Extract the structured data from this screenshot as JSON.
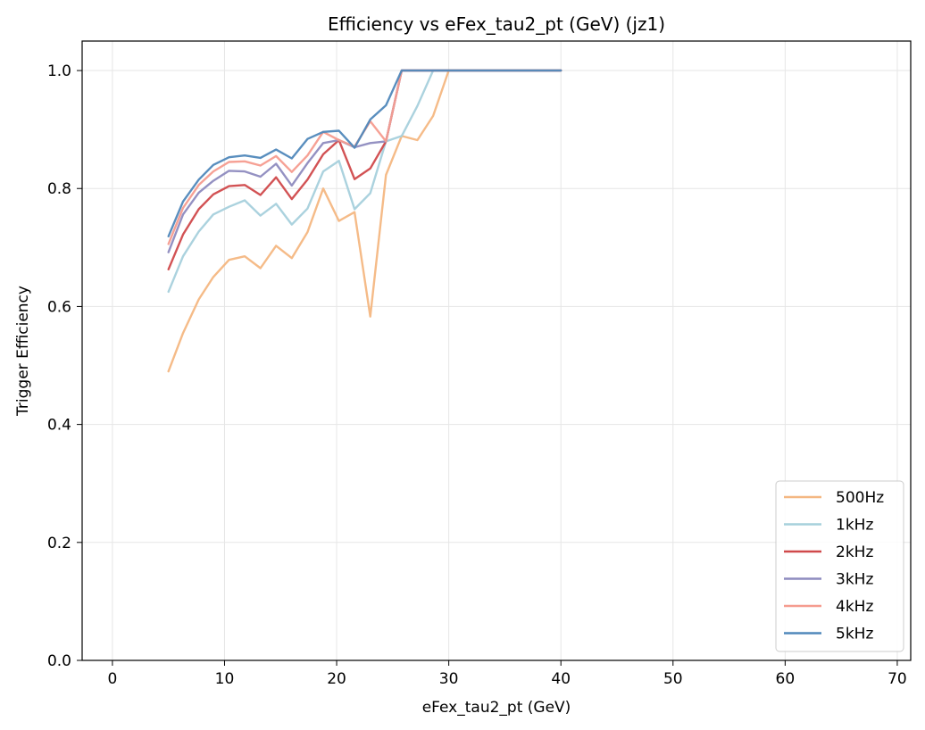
{
  "chart_data": {
    "type": "line",
    "title": "Efficiency vs eFex_tau2_pt (GeV) (jz1)",
    "xlabel": "eFex_tau2_pt (GeV)",
    "ylabel": "Trigger Efficiency",
    "xlim": [
      -2.7,
      71.2
    ],
    "ylim": [
      0,
      1.05
    ],
    "xticks": [
      "0",
      "10",
      "20",
      "30",
      "40",
      "50",
      "60",
      "70"
    ],
    "yticks": [
      "0.0",
      "0.2",
      "0.4",
      "0.6",
      "0.8",
      "1.0"
    ],
    "grid": true,
    "legend_position": "lower-right",
    "x": [
      5,
      6.3,
      7.7,
      9.0,
      10.4,
      11.8,
      13.2,
      14.6,
      16.0,
      17.4,
      18.8,
      20.2,
      21.6,
      23.0,
      24.4,
      25.8,
      27.2,
      28.6,
      30,
      32,
      34,
      36,
      38,
      40
    ],
    "series": [
      {
        "name": "500Hz",
        "color": "#f4b782",
        "values": [
          0.49,
          0.555,
          0.612,
          0.65,
          0.679,
          0.685,
          0.665,
          0.703,
          0.682,
          0.726,
          0.8,
          0.745,
          0.76,
          0.583,
          0.823,
          0.889,
          0.882,
          0.923,
          1.0,
          1.0,
          1.0,
          1.0,
          1.0,
          1.0
        ]
      },
      {
        "name": "1kHz",
        "color": "#a6d0dc",
        "values": [
          0.625,
          0.685,
          0.727,
          0.756,
          0.769,
          0.78,
          0.754,
          0.774,
          0.739,
          0.766,
          0.829,
          0.847,
          0.765,
          0.792,
          0.88,
          0.889,
          0.94,
          1.0,
          1.0,
          1.0,
          1.0,
          1.0,
          1.0,
          1.0
        ]
      },
      {
        "name": "2kHz",
        "color": "#d0494b",
        "values": [
          0.663,
          0.722,
          0.765,
          0.79,
          0.804,
          0.806,
          0.789,
          0.819,
          0.782,
          0.815,
          0.858,
          0.882,
          0.816,
          0.834,
          0.88,
          1.0,
          1.0,
          1.0,
          1.0,
          1.0,
          1.0,
          1.0,
          1.0,
          1.0
        ]
      },
      {
        "name": "3kHz",
        "color": "#8e8bbf",
        "values": [
          0.692,
          0.756,
          0.793,
          0.813,
          0.83,
          0.829,
          0.82,
          0.842,
          0.805,
          0.843,
          0.877,
          0.882,
          0.87,
          0.877,
          0.88,
          1.0,
          1.0,
          1.0,
          1.0,
          1.0,
          1.0,
          1.0,
          1.0,
          1.0
        ]
      },
      {
        "name": "4kHz",
        "color": "#f59c8f",
        "values": [
          0.706,
          0.767,
          0.806,
          0.829,
          0.845,
          0.846,
          0.839,
          0.855,
          0.828,
          0.856,
          0.896,
          0.882,
          0.871,
          0.914,
          0.88,
          1.0,
          1.0,
          1.0,
          1.0,
          1.0,
          1.0,
          1.0,
          1.0,
          1.0
        ]
      },
      {
        "name": "5kHz",
        "color": "#5088bb",
        "values": [
          0.719,
          0.778,
          0.815,
          0.84,
          0.853,
          0.856,
          0.852,
          0.866,
          0.851,
          0.884,
          0.896,
          0.898,
          0.869,
          0.917,
          0.941,
          1.0,
          1.0,
          1.0,
          1.0,
          1.0,
          1.0,
          1.0,
          1.0,
          1.0
        ]
      }
    ]
  }
}
